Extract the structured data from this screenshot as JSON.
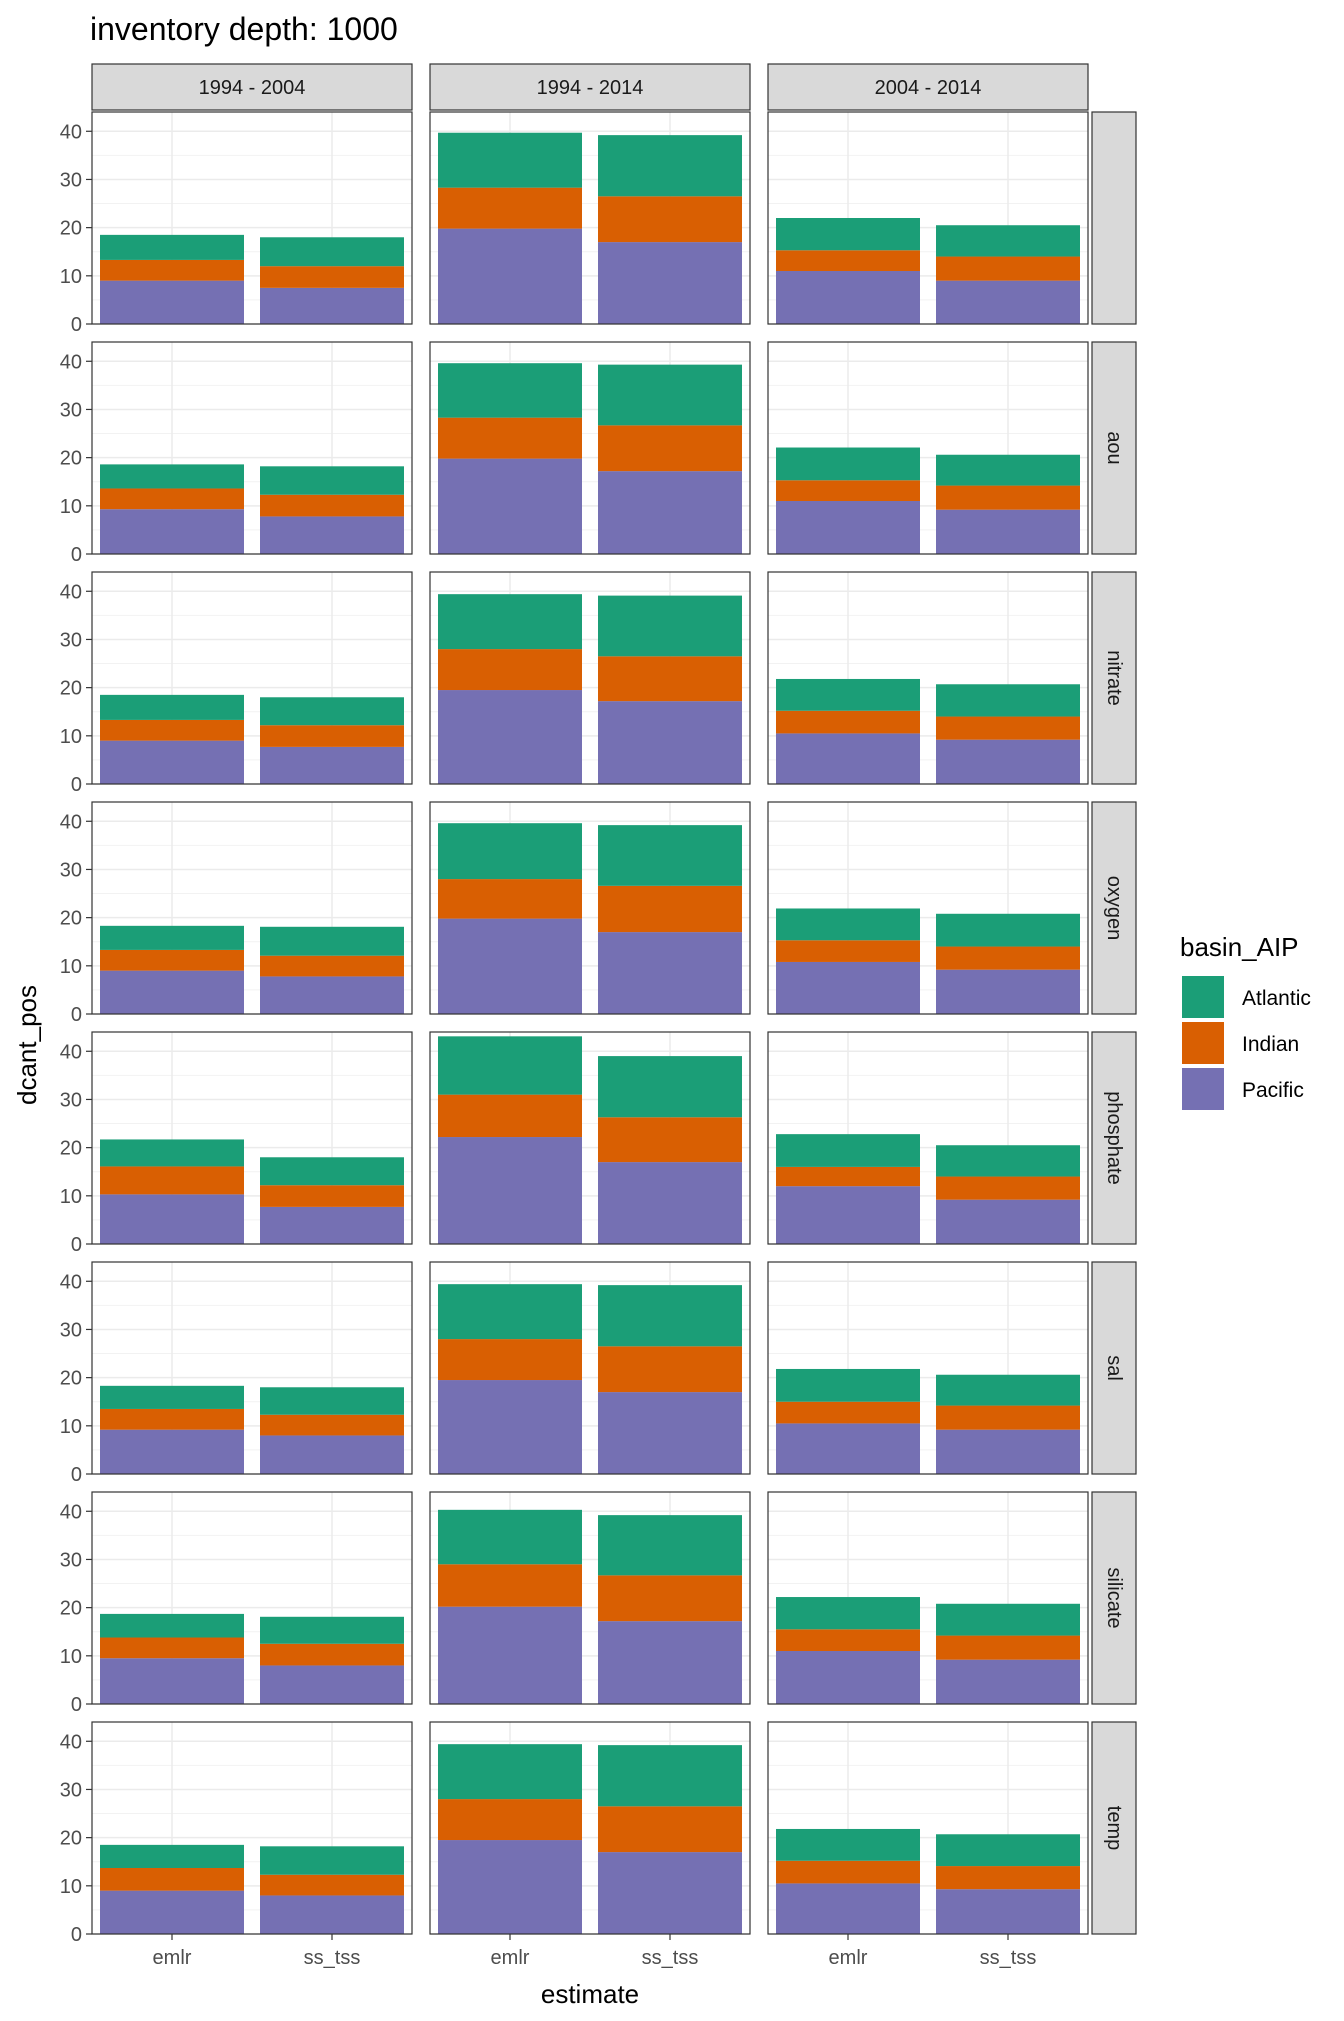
{
  "chart_data": {
    "type": "bar",
    "stacked": true,
    "title": "inventory depth: 1000",
    "xlabel": "estimate",
    "ylabel": "dcant_pos",
    "ylim": [
      0,
      44
    ],
    "yticks": [
      0,
      10,
      20,
      30,
      40
    ],
    "grid": true,
    "legend_position": "right",
    "legend_title": "basin_AIP",
    "legend": [
      {
        "name": "Atlantic",
        "color": "#1B9E77"
      },
      {
        "name": "Indian",
        "color": "#D95F02"
      },
      {
        "name": "Pacific",
        "color": "#7570B3"
      }
    ],
    "stack_order": [
      "Pacific",
      "Indian",
      "Atlantic"
    ],
    "categories": [
      "emlr",
      "ss_tss"
    ],
    "col_facets": [
      "1994 - 2004",
      "1994 - 2014",
      "2004 - 2014"
    ],
    "row_facets": [
      "",
      "aou",
      "nitrate",
      "oxygen",
      "phosphate",
      "sal",
      "silicate",
      "temp"
    ],
    "panels": [
      [
        {
          "emlr": {
            "Pacific": 9.0,
            "Indian": 4.3,
            "Atlantic": 5.2
          },
          "ss_tss": {
            "Pacific": 7.5,
            "Indian": 4.5,
            "Atlantic": 6.0
          }
        },
        {
          "emlr": {
            "Pacific": 19.8,
            "Indian": 8.5,
            "Atlantic": 11.4
          },
          "ss_tss": {
            "Pacific": 17.0,
            "Indian": 9.5,
            "Atlantic": 12.7
          }
        },
        {
          "emlr": {
            "Pacific": 11.0,
            "Indian": 4.3,
            "Atlantic": 6.7
          },
          "ss_tss": {
            "Pacific": 9.0,
            "Indian": 5.0,
            "Atlantic": 6.5
          }
        }
      ],
      [
        {
          "emlr": {
            "Pacific": 9.3,
            "Indian": 4.3,
            "Atlantic": 5.0
          },
          "ss_tss": {
            "Pacific": 7.8,
            "Indian": 4.5,
            "Atlantic": 5.9
          }
        },
        {
          "emlr": {
            "Pacific": 19.8,
            "Indian": 8.5,
            "Atlantic": 11.3
          },
          "ss_tss": {
            "Pacific": 17.2,
            "Indian": 9.5,
            "Atlantic": 12.6
          }
        },
        {
          "emlr": {
            "Pacific": 11.0,
            "Indian": 4.3,
            "Atlantic": 6.8
          },
          "ss_tss": {
            "Pacific": 9.2,
            "Indian": 5.0,
            "Atlantic": 6.4
          }
        }
      ],
      [
        {
          "emlr": {
            "Pacific": 9.0,
            "Indian": 4.3,
            "Atlantic": 5.2
          },
          "ss_tss": {
            "Pacific": 7.7,
            "Indian": 4.5,
            "Atlantic": 5.8
          }
        },
        {
          "emlr": {
            "Pacific": 19.5,
            "Indian": 8.5,
            "Atlantic": 11.4
          },
          "ss_tss": {
            "Pacific": 17.2,
            "Indian": 9.3,
            "Atlantic": 12.6
          }
        },
        {
          "emlr": {
            "Pacific": 10.5,
            "Indian": 4.7,
            "Atlantic": 6.6
          },
          "ss_tss": {
            "Pacific": 9.2,
            "Indian": 4.8,
            "Atlantic": 6.7
          }
        }
      ],
      [
        {
          "emlr": {
            "Pacific": 9.0,
            "Indian": 4.3,
            "Atlantic": 5.0
          },
          "ss_tss": {
            "Pacific": 7.8,
            "Indian": 4.3,
            "Atlantic": 6.0
          }
        },
        {
          "emlr": {
            "Pacific": 19.8,
            "Indian": 8.2,
            "Atlantic": 11.6
          },
          "ss_tss": {
            "Pacific": 17.0,
            "Indian": 9.6,
            "Atlantic": 12.6
          }
        },
        {
          "emlr": {
            "Pacific": 10.8,
            "Indian": 4.5,
            "Atlantic": 6.6
          },
          "ss_tss": {
            "Pacific": 9.2,
            "Indian": 4.8,
            "Atlantic": 6.8
          }
        }
      ],
      [
        {
          "emlr": {
            "Pacific": 10.3,
            "Indian": 5.8,
            "Atlantic": 5.6
          },
          "ss_tss": {
            "Pacific": 7.7,
            "Indian": 4.5,
            "Atlantic": 5.8
          }
        },
        {
          "emlr": {
            "Pacific": 22.2,
            "Indian": 8.8,
            "Atlantic": 12.1
          },
          "ss_tss": {
            "Pacific": 17.0,
            "Indian": 9.3,
            "Atlantic": 12.7
          }
        },
        {
          "emlr": {
            "Pacific": 12.0,
            "Indian": 4.0,
            "Atlantic": 6.8
          },
          "ss_tss": {
            "Pacific": 9.2,
            "Indian": 4.8,
            "Atlantic": 6.5
          }
        }
      ],
      [
        {
          "emlr": {
            "Pacific": 9.2,
            "Indian": 4.3,
            "Atlantic": 4.8
          },
          "ss_tss": {
            "Pacific": 8.0,
            "Indian": 4.3,
            "Atlantic": 5.7
          }
        },
        {
          "emlr": {
            "Pacific": 19.5,
            "Indian": 8.5,
            "Atlantic": 11.4
          },
          "ss_tss": {
            "Pacific": 17.0,
            "Indian": 9.5,
            "Atlantic": 12.7
          }
        },
        {
          "emlr": {
            "Pacific": 10.5,
            "Indian": 4.5,
            "Atlantic": 6.8
          },
          "ss_tss": {
            "Pacific": 9.2,
            "Indian": 5.0,
            "Atlantic": 6.4
          }
        }
      ],
      [
        {
          "emlr": {
            "Pacific": 9.5,
            "Indian": 4.3,
            "Atlantic": 4.9
          },
          "ss_tss": {
            "Pacific": 8.0,
            "Indian": 4.5,
            "Atlantic": 5.6
          }
        },
        {
          "emlr": {
            "Pacific": 20.2,
            "Indian": 8.8,
            "Atlantic": 11.3
          },
          "ss_tss": {
            "Pacific": 17.2,
            "Indian": 9.5,
            "Atlantic": 12.5
          }
        },
        {
          "emlr": {
            "Pacific": 11.0,
            "Indian": 4.5,
            "Atlantic": 6.7
          },
          "ss_tss": {
            "Pacific": 9.2,
            "Indian": 5.0,
            "Atlantic": 6.6
          }
        }
      ],
      [
        {
          "emlr": {
            "Pacific": 9.0,
            "Indian": 4.7,
            "Atlantic": 4.8
          },
          "ss_tss": {
            "Pacific": 8.0,
            "Indian": 4.3,
            "Atlantic": 5.9
          }
        },
        {
          "emlr": {
            "Pacific": 19.5,
            "Indian": 8.5,
            "Atlantic": 11.4
          },
          "ss_tss": {
            "Pacific": 17.0,
            "Indian": 9.5,
            "Atlantic": 12.7
          }
        },
        {
          "emlr": {
            "Pacific": 10.5,
            "Indian": 4.7,
            "Atlantic": 6.6
          },
          "ss_tss": {
            "Pacific": 9.3,
            "Indian": 4.8,
            "Atlantic": 6.6
          }
        }
      ]
    ]
  }
}
